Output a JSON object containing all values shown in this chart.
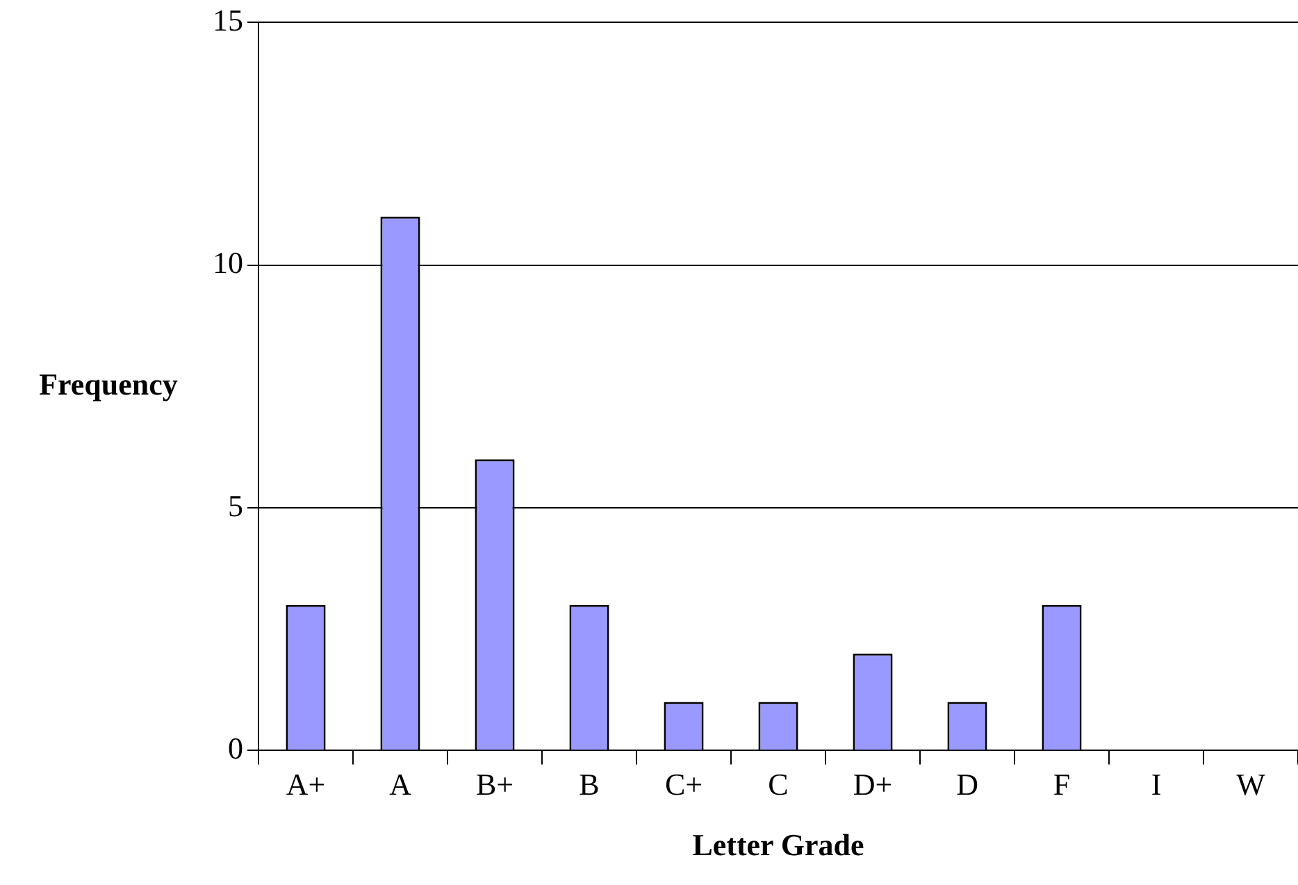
{
  "chart_data": {
    "type": "bar",
    "xlabel": "Letter Grade",
    "ylabel": "Frequency",
    "categories": [
      "A+",
      "A",
      "B+",
      "B",
      "C+",
      "C",
      "D+",
      "D",
      "F",
      "I",
      "W"
    ],
    "values": [
      3,
      11,
      6,
      3,
      1,
      1,
      2,
      1,
      3,
      0,
      0
    ],
    "color": "#9999ff",
    "ylim": [
      0,
      15
    ],
    "yticks": [
      0,
      5,
      10,
      15
    ],
    "grid": "y",
    "legend": false
  }
}
